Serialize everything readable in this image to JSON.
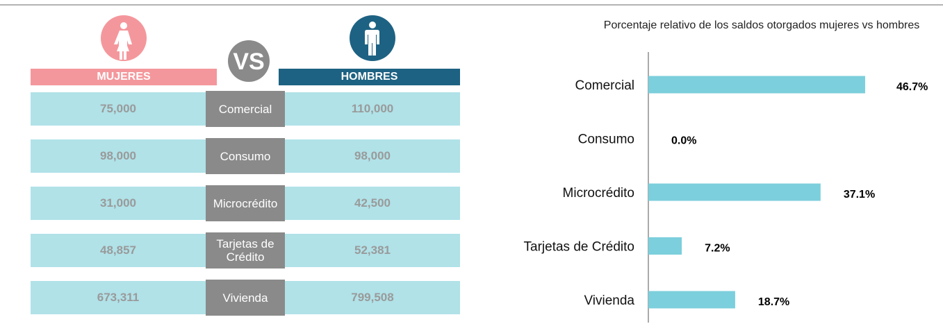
{
  "table": {
    "header": [
      "MUJERES",
      "HOMBRES"
    ],
    "vs_label": "VS",
    "rows": [
      [
        "75,000",
        "Comercial",
        "110,000"
      ],
      [
        "98,000",
        "Consumo",
        "98,000"
      ],
      [
        "31,000",
        "Microcrédito",
        "42,500"
      ],
      [
        "48,857",
        "Tarjetas de Crédito",
        "52,381"
      ],
      [
        "673,311",
        "Vivienda",
        "799,508"
      ]
    ]
  },
  "chart_data": {
    "type": "bar",
    "orientation": "horizontal",
    "title": "Porcentaje relativo de los saldos otorgados mujeres vs hombres",
    "categories": [
      "Comercial",
      "Consumo",
      "Microcrédito",
      "Tarjetas de Crédito",
      "Vivienda"
    ],
    "values": [
      46.7,
      0.0,
      37.1,
      7.2,
      18.7
    ],
    "value_labels": [
      "46.7%",
      "0.0%",
      "37.1%",
      "7.2%",
      "18.7%"
    ],
    "color": "#7ccfdc"
  }
}
